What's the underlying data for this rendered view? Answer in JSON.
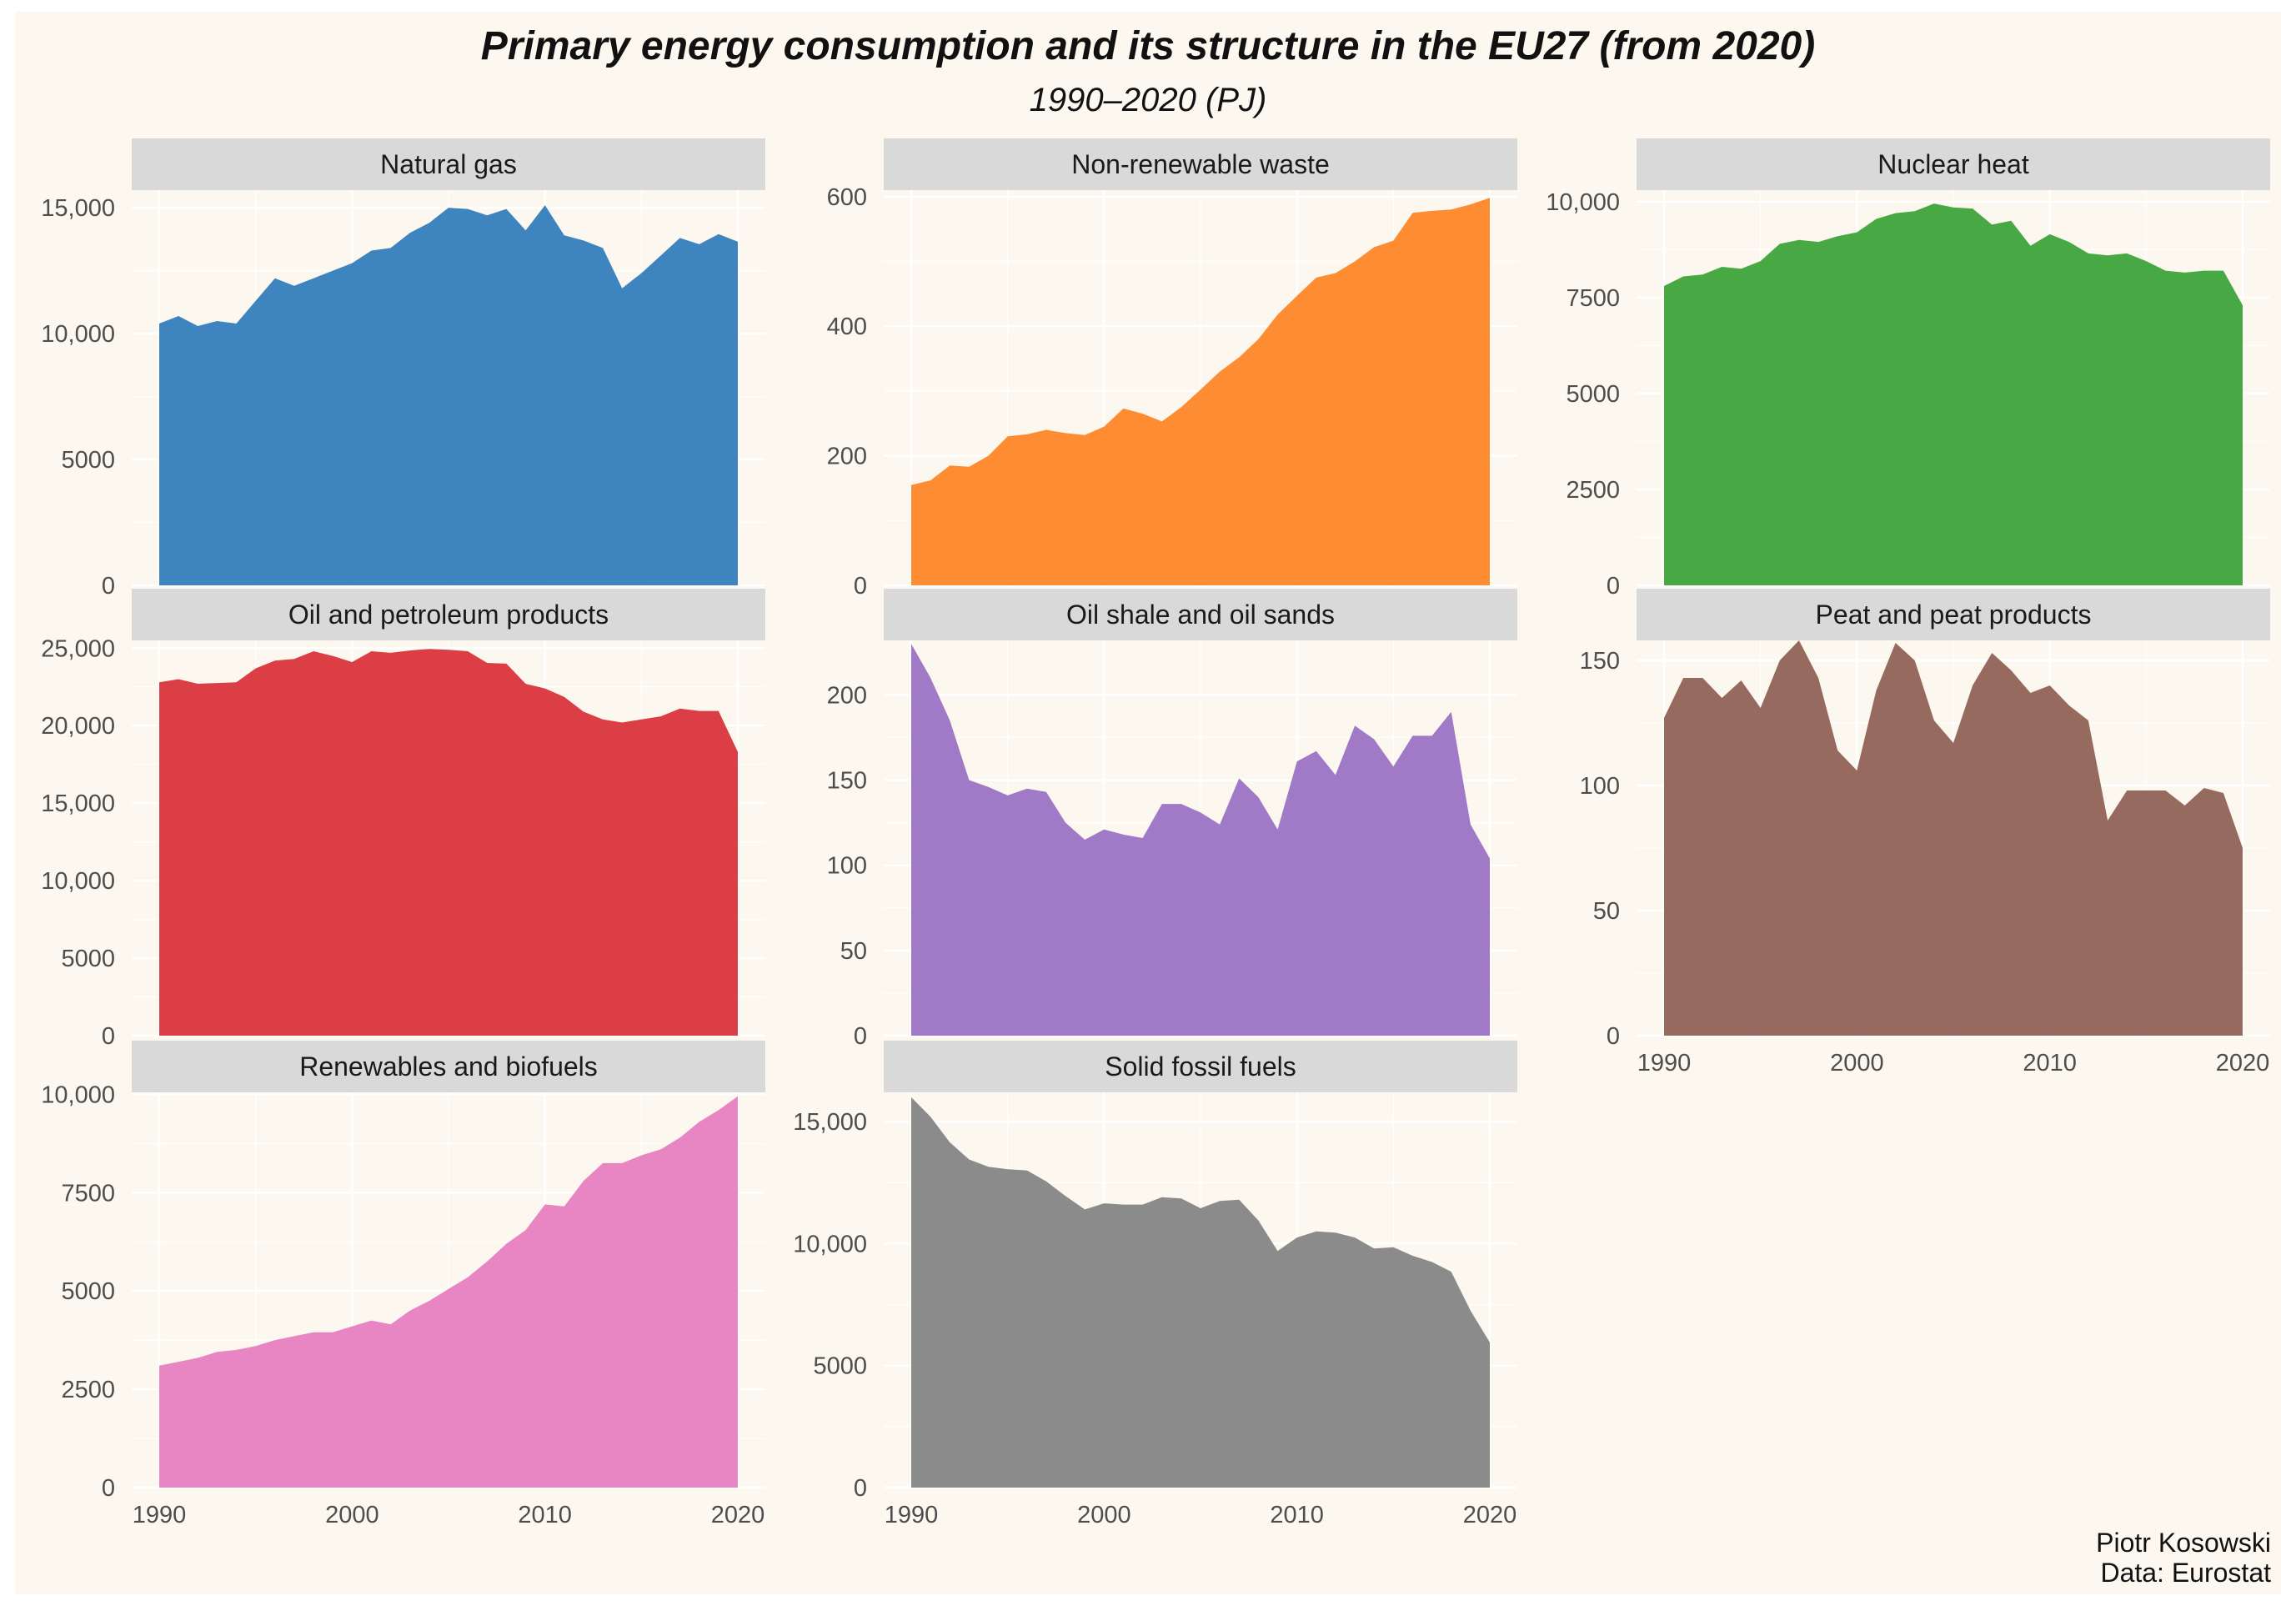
{
  "title": "Primary energy consumption and its structure in the EU27 (from 2020)",
  "subtitle": "1990–2020 (PJ)",
  "caption": {
    "author": "Piotr Kosowski",
    "source": "Data: Eurostat"
  },
  "colors": {
    "background": "#fcf8ef",
    "strip": "#d9d9d9",
    "grid": "#ffffff"
  },
  "chart_data": {
    "type": "area",
    "layout": "facet grid, 3 columns, free y scales",
    "years": [
      1990,
      1991,
      1992,
      1993,
      1994,
      1995,
      1996,
      1997,
      1998,
      1999,
      2000,
      2001,
      2002,
      2003,
      2004,
      2005,
      2006,
      2007,
      2008,
      2009,
      2010,
      2011,
      2012,
      2013,
      2014,
      2015,
      2016,
      2017,
      2018,
      2019,
      2020
    ],
    "x_ticks": [
      1990,
      2000,
      2010,
      2020
    ],
    "x_tick_labels": [
      "1990",
      "2000",
      "2010",
      "2020"
    ],
    "panels": [
      {
        "name": "Natural gas",
        "color": "#3e84be",
        "ylim": [
          0,
          15700
        ],
        "y_ticks": [
          0,
          5000,
          10000,
          15000
        ],
        "y_tick_labels": [
          "0",
          "5000",
          "10,000",
          "15,000"
        ],
        "values": [
          10400,
          10700,
          10300,
          10500,
          10400,
          11300,
          12200,
          11900,
          12200,
          12500,
          12800,
          13300,
          13400,
          14000,
          14400,
          15000,
          14950,
          14700,
          14950,
          14100,
          15100,
          13900,
          13700,
          13400,
          11800,
          12400,
          13100,
          13800,
          13550,
          13950,
          13650
        ]
      },
      {
        "name": "Non-renewable waste",
        "color": "#fd8c33",
        "ylim": [
          0,
          610
        ],
        "y_ticks": [
          0,
          200,
          400,
          600
        ],
        "y_tick_labels": [
          "0",
          "200",
          "400",
          "600"
        ],
        "values": [
          155,
          162,
          185,
          183,
          200,
          230,
          233,
          240,
          235,
          232,
          245,
          273,
          265,
          253,
          275,
          302,
          330,
          352,
          380,
          418,
          447,
          475,
          482,
          500,
          522,
          532,
          575,
          578,
          580,
          588,
          598
        ]
      },
      {
        "name": "Nuclear heat",
        "color": "#48a843",
        "ylim": [
          0,
          10300
        ],
        "y_ticks": [
          0,
          2500,
          5000,
          7500,
          10000
        ],
        "y_tick_labels": [
          "0",
          "2500",
          "5000",
          "7500",
          "10,000"
        ],
        "values": [
          7800,
          8050,
          8100,
          8300,
          8250,
          8450,
          8900,
          9000,
          8950,
          9100,
          9200,
          9550,
          9700,
          9750,
          9950,
          9850,
          9820,
          9400,
          9500,
          8850,
          9150,
          8950,
          8650,
          8600,
          8650,
          8450,
          8200,
          8150,
          8200,
          8200,
          7300
        ]
      },
      {
        "name": "Oil and petroleum products",
        "color": "#db3f45",
        "ylim": [
          0,
          25500
        ],
        "y_ticks": [
          0,
          5000,
          10000,
          15000,
          20000,
          25000
        ],
        "y_tick_labels": [
          "0",
          "5000",
          "10,000",
          "15,000",
          "20,000",
          "25,000"
        ],
        "values": [
          22800,
          23000,
          22700,
          22750,
          22800,
          23700,
          24200,
          24300,
          24800,
          24500,
          24100,
          24800,
          24700,
          24850,
          24950,
          24900,
          24800,
          24050,
          24000,
          22700,
          22400,
          21850,
          20900,
          20400,
          20200,
          20400,
          20600,
          21100,
          20950,
          20950,
          18300
        ]
      },
      {
        "name": "Oil shale and oil sands",
        "color": "#a07ac6",
        "ylim": [
          0,
          232
        ],
        "y_ticks": [
          0,
          50,
          100,
          150,
          200
        ],
        "y_tick_labels": [
          "0",
          "50",
          "100",
          "150",
          "200"
        ],
        "values": [
          230,
          210,
          185,
          150,
          146,
          141,
          145,
          143,
          125,
          115,
          121,
          118,
          116,
          136,
          136,
          131,
          124,
          151,
          140,
          121,
          161,
          167,
          153,
          182,
          174,
          158,
          176,
          176,
          190,
          124,
          104
        ]
      },
      {
        "name": "Peat and peat products",
        "color": "#976a5f",
        "ylim": [
          0,
          158
        ],
        "y_ticks": [
          0,
          50,
          100,
          150
        ],
        "y_tick_labels": [
          "0",
          "50",
          "100",
          "150"
        ],
        "values": [
          127,
          143,
          143,
          135,
          142,
          131,
          150,
          158,
          143,
          114,
          106,
          138,
          157,
          150,
          126,
          117,
          140,
          153,
          146,
          137,
          140,
          132,
          126,
          86,
          98,
          98,
          98,
          92,
          99,
          97,
          75
        ]
      },
      {
        "name": "Renewables and biofuels",
        "color": "#e886c4",
        "ylim": [
          0,
          10050
        ],
        "y_ticks": [
          0,
          2500,
          5000,
          7500,
          10000
        ],
        "y_tick_labels": [
          "0",
          "2500",
          "5000",
          "7500",
          "10,000"
        ],
        "values": [
          3100,
          3200,
          3300,
          3450,
          3500,
          3600,
          3750,
          3850,
          3950,
          3950,
          4100,
          4250,
          4150,
          4500,
          4750,
          5050,
          5350,
          5750,
          6200,
          6550,
          7200,
          7150,
          7800,
          8250,
          8250,
          8450,
          8600,
          8900,
          9300,
          9600,
          9950
        ]
      },
      {
        "name": "Solid fossil fuels",
        "color": "#8b8b8b",
        "ylim": [
          0,
          16200
        ],
        "y_ticks": [
          0,
          5000,
          10000,
          15000
        ],
        "y_tick_labels": [
          "0",
          "5000",
          "10,000",
          "15,000"
        ],
        "values": [
          16000,
          15200,
          14150,
          13450,
          13150,
          13050,
          13000,
          12550,
          11950,
          11400,
          11650,
          11600,
          11600,
          11900,
          11850,
          11450,
          11750,
          11800,
          10950,
          9700,
          10250,
          10500,
          10450,
          10250,
          9800,
          9850,
          9500,
          9250,
          8850,
          7250,
          5950
        ]
      }
    ]
  }
}
